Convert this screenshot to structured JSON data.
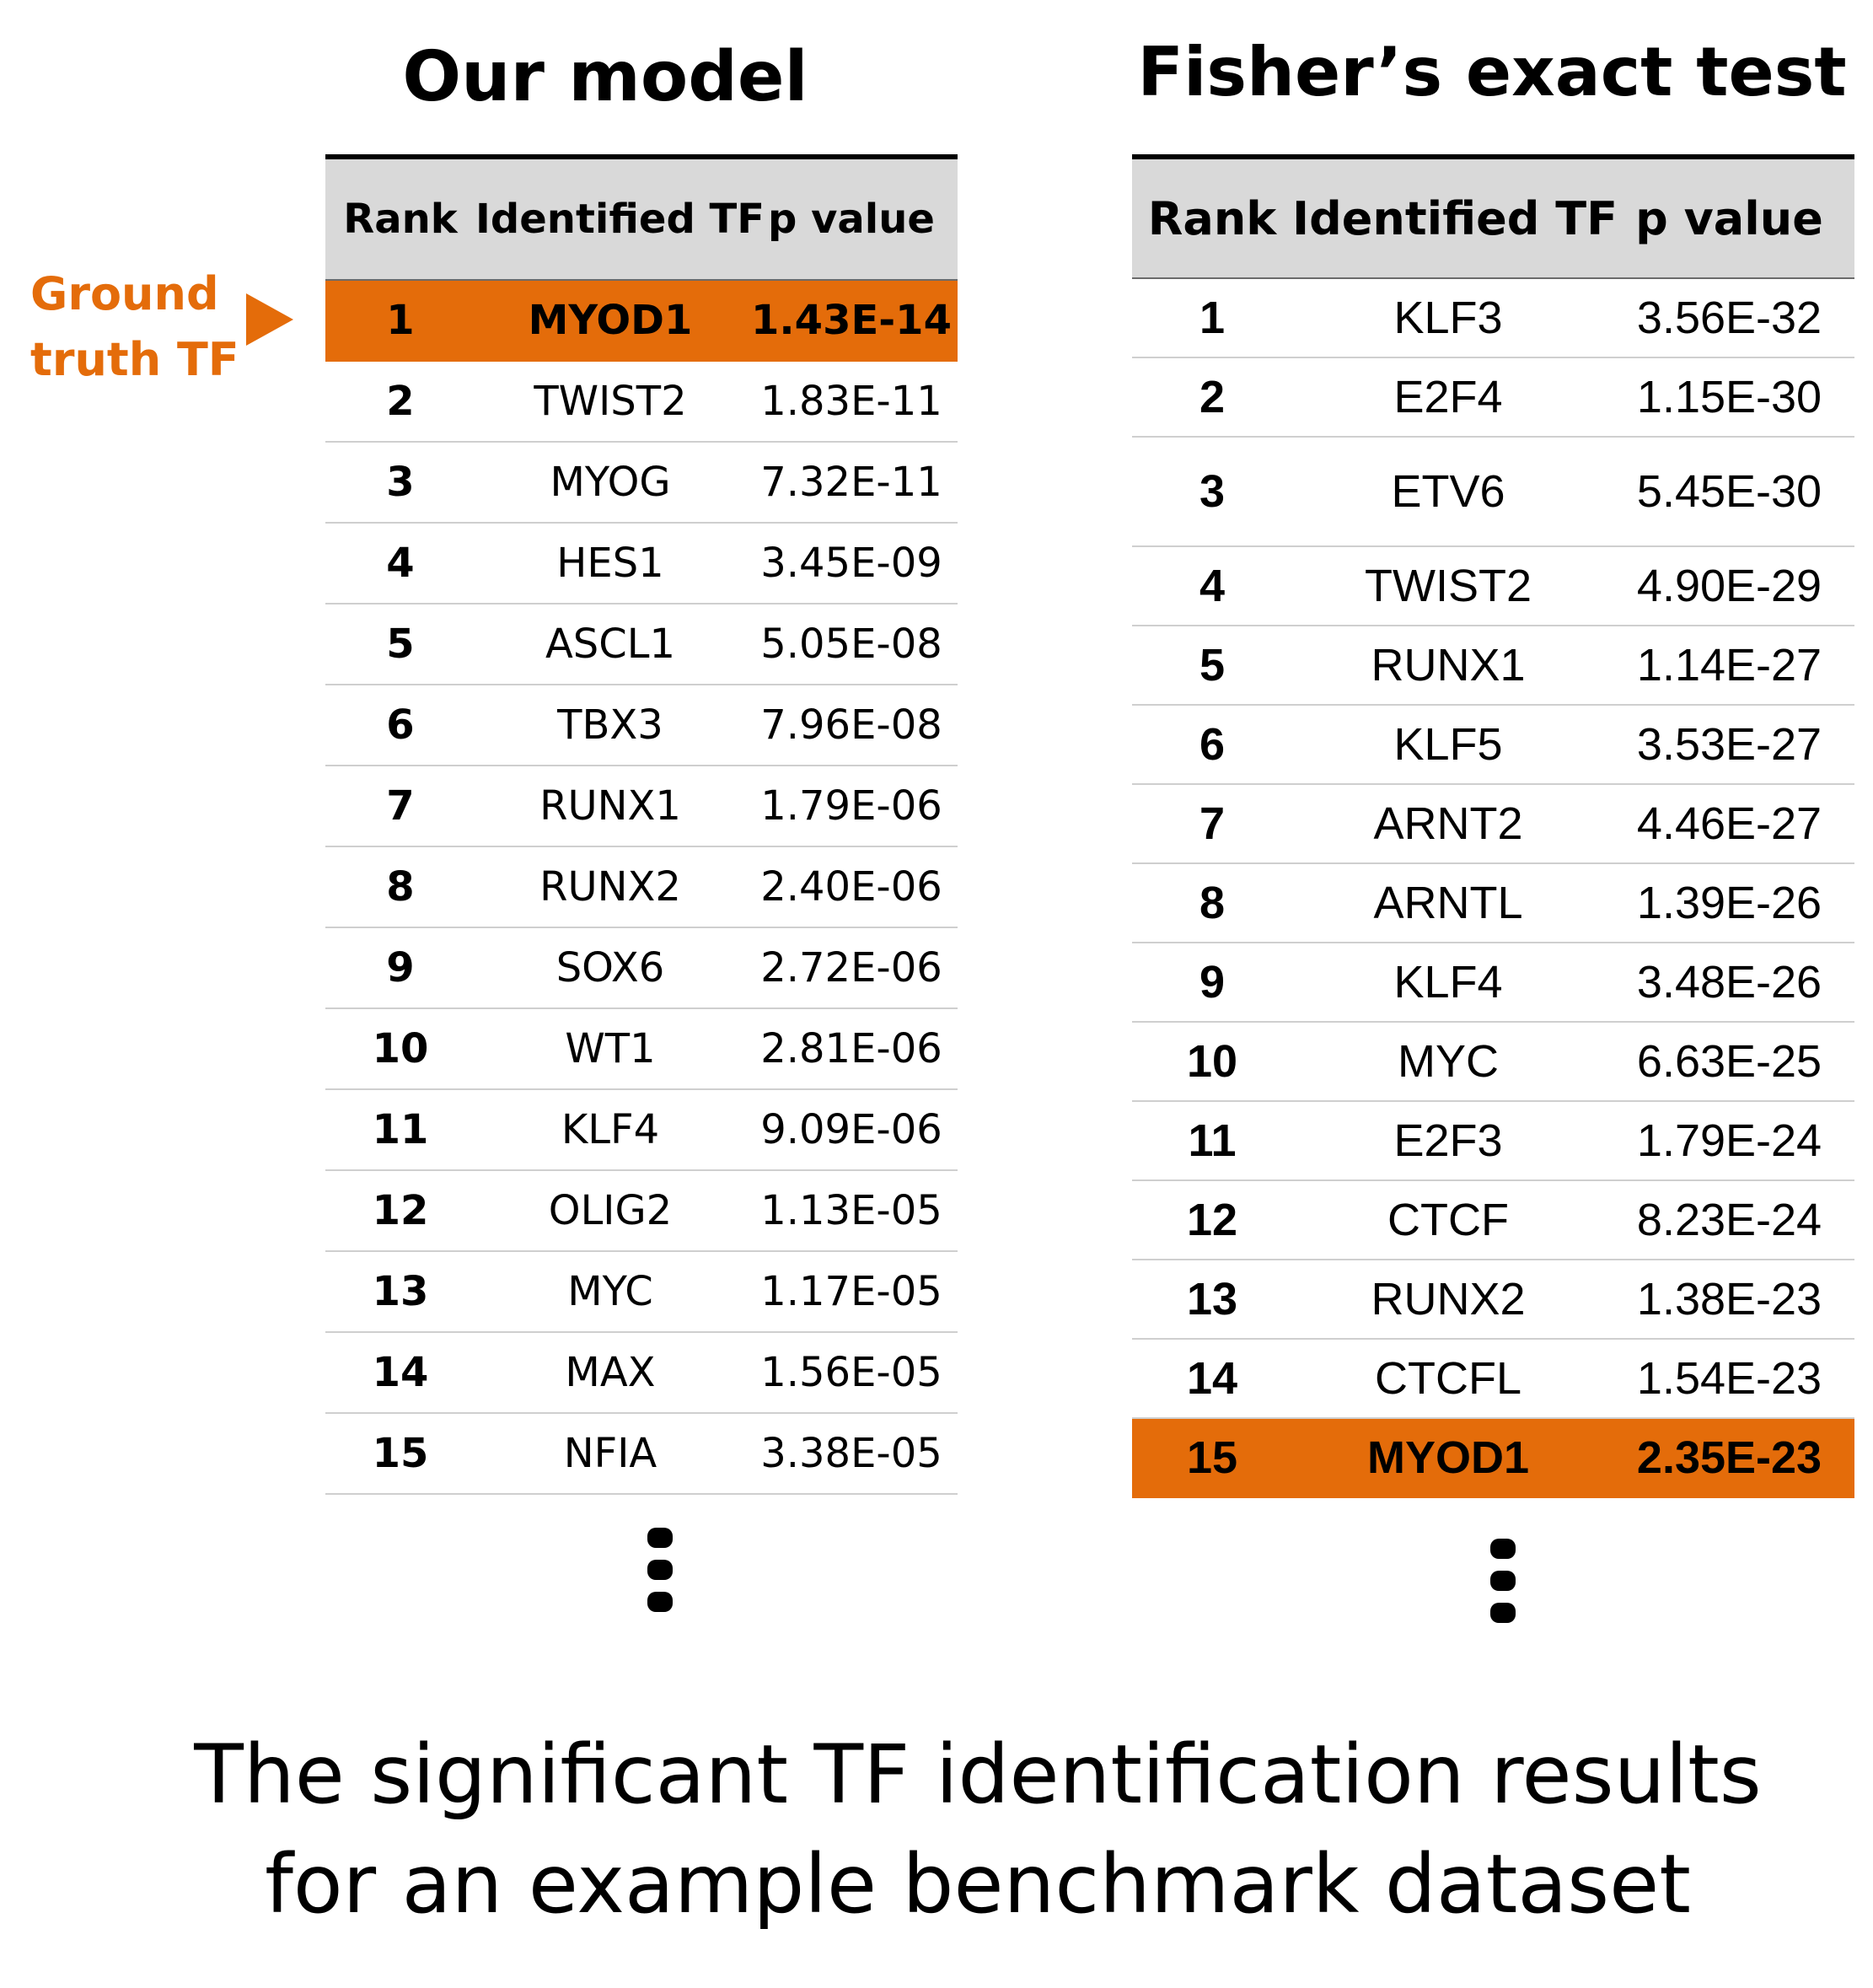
{
  "chart_data": [
    {
      "type": "table",
      "title": "Our model",
      "columns": [
        "Rank",
        "Identified TF",
        "p value"
      ],
      "rows": [
        [
          "1",
          "MYOD1",
          "1.43E-14"
        ],
        [
          "2",
          "TWIST2",
          "1.83E-11"
        ],
        [
          "3",
          "MYOG",
          "7.32E-11"
        ],
        [
          "4",
          "HES1",
          "3.45E-09"
        ],
        [
          "5",
          "ASCL1",
          "5.05E-08"
        ],
        [
          "6",
          "TBX3",
          "7.96E-08"
        ],
        [
          "7",
          "RUNX1",
          "1.79E-06"
        ],
        [
          "8",
          "RUNX2",
          "2.40E-06"
        ],
        [
          "9",
          "SOX6",
          "2.72E-06"
        ],
        [
          "10",
          "WT1",
          "2.81E-06"
        ],
        [
          "11",
          "KLF4",
          "9.09E-06"
        ],
        [
          "12",
          "OLIG2",
          "1.13E-05"
        ],
        [
          "13",
          "MYC",
          "1.17E-05"
        ],
        [
          "14",
          "MAX",
          "1.56E-05"
        ],
        [
          "15",
          "NFIA",
          "3.38E-05"
        ]
      ],
      "highlighted_rank": "1"
    },
    {
      "type": "table",
      "title": "Fisher’s exact test",
      "columns": [
        "Rank",
        "Identified TF",
        "p value"
      ],
      "rows": [
        [
          "1",
          "KLF3",
          "3.56E-32"
        ],
        [
          "2",
          "E2F4",
          "1.15E-30"
        ],
        [
          "3",
          "ETV6",
          "5.45E-30"
        ],
        [
          "4",
          "TWIST2",
          "4.90E-29"
        ],
        [
          "5",
          "RUNX1",
          "1.14E-27"
        ],
        [
          "6",
          "KLF5",
          "3.53E-27"
        ],
        [
          "7",
          "ARNT2",
          "4.46E-27"
        ],
        [
          "8",
          "ARNTL",
          "1.39E-26"
        ],
        [
          "9",
          "KLF4",
          "3.48E-26"
        ],
        [
          "10",
          "MYC",
          "6.63E-25"
        ],
        [
          "11",
          "E2F3",
          "1.79E-24"
        ],
        [
          "12",
          "CTCF",
          "8.23E-24"
        ],
        [
          "13",
          "RUNX2",
          "1.38E-23"
        ],
        [
          "14",
          "CTCFL",
          "1.54E-23"
        ],
        [
          "15",
          "MYOD1",
          "2.35E-23"
        ]
      ],
      "highlighted_rank": "15"
    }
  ],
  "annotation": {
    "label_line1": "Ground",
    "label_line2": "truth TF",
    "color": "#e46c0a"
  },
  "caption": {
    "line1": "The significant TF identification results",
    "line2": "for an example benchmark dataset"
  },
  "colors": {
    "highlight": "#e46c0a",
    "header_bg": "#d9d9d9"
  }
}
